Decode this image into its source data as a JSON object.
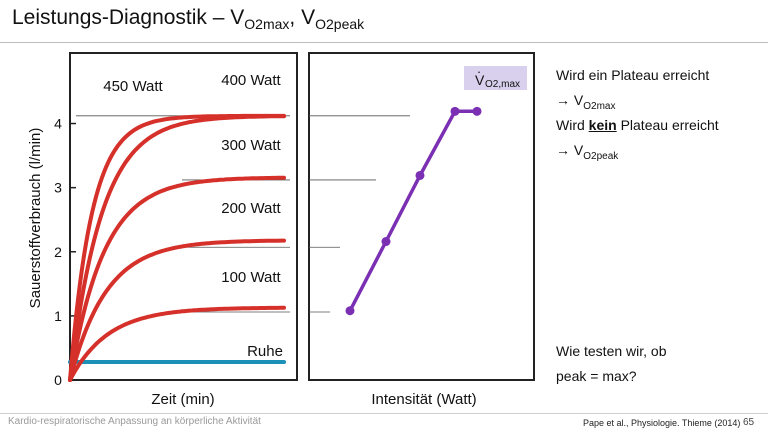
{
  "slide": {
    "title_prefix": "Leistungs-Diagnostik – V",
    "title_sub1": "O2max",
    "title_mid": ", V",
    "title_sub2": "O2peak",
    "notes": {
      "line1": "Wird ein Plateau erreicht",
      "arrow": "→ V",
      "line2_sub": "O2max",
      "line3_pre": "Wird ",
      "line3_bold": "kein",
      "line3_post": " Plateau erreicht",
      "line4_sub": "O2peak",
      "question1": "Wie testen wir, ob",
      "question2": "peak = max?"
    },
    "footer_left": "Kardio-respiratorische Anpassung an körperliche Aktivität",
    "footer_citation": "Pape et al., Physiologie. Thieme (2014)",
    "page_number": "65"
  },
  "chart_data": [
    {
      "type": "line",
      "xlabel": "Zeit (min)",
      "ylabel": "Sauerstoffverbrauch (l/min)",
      "ylim": [
        0,
        5.1
      ],
      "yticks": [
        0,
        1,
        2,
        3,
        4
      ],
      "series": [
        {
          "name": "Ruhe",
          "plateau": 0.28,
          "color": "#1b91b8"
        },
        {
          "name": "100 Watt",
          "plateau": 1.13,
          "color": "#d6302a"
        },
        {
          "name": "200 Watt",
          "plateau": 2.18,
          "color": "#d6302a"
        },
        {
          "name": "300 Watt",
          "plateau": 3.16,
          "color": "#d6302a"
        },
        {
          "name": "400 Watt",
          "plateau": 4.12,
          "color": "#d6302a"
        },
        {
          "name": "450 Watt",
          "plateau": 4.12,
          "color": "#d6302a"
        }
      ]
    },
    {
      "type": "line",
      "xlabel": "Intensität (Watt)",
      "ylim": [
        0,
        5.1
      ],
      "annotation": {
        "base": "V",
        "sub": "O2,max",
        "color": "#d8d0ec"
      },
      "series": [
        {
          "color": "#7b2fb3",
          "points": [
            [
              100,
              1.08
            ],
            [
              200,
              2.16
            ],
            [
              300,
              3.19
            ],
            [
              400,
              4.19
            ],
            [
              450,
              4.19
            ]
          ]
        }
      ]
    }
  ]
}
